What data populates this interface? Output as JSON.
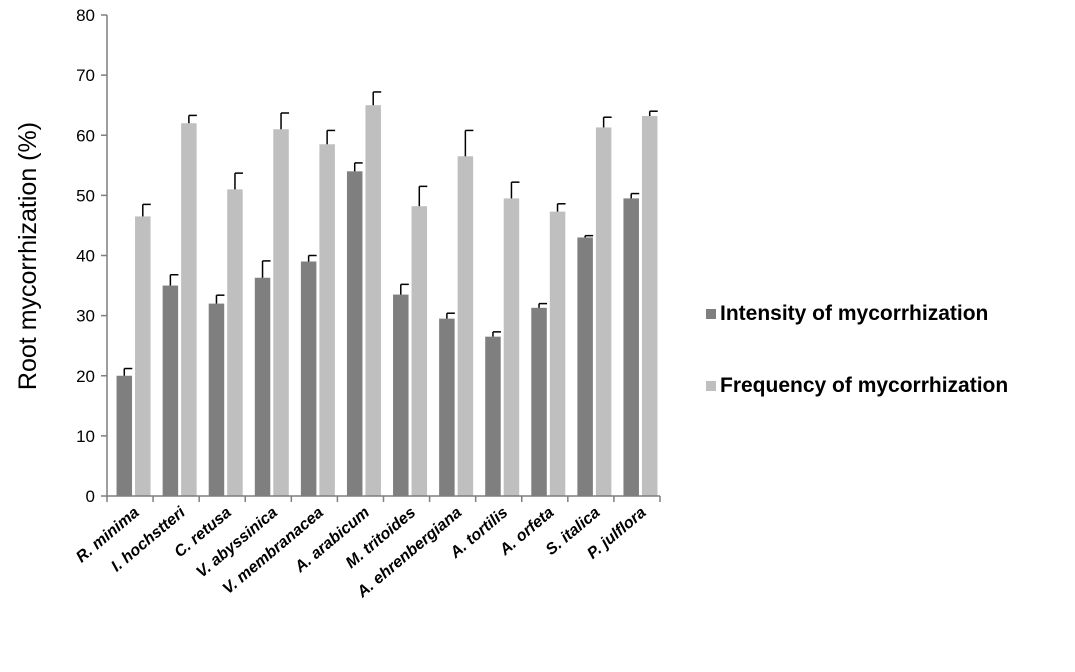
{
  "chart_data": {
    "type": "bar",
    "title": "",
    "xlabel": "",
    "ylabel": "Root mycorrhization (%)",
    "ylim": [
      0,
      80
    ],
    "yticks": [
      0,
      10,
      20,
      30,
      40,
      50,
      60,
      70,
      80
    ],
    "grid": false,
    "legend_position": "right",
    "categories": [
      "R. minima",
      "I. hochstteri",
      "C. retusa",
      "V. abyssinica",
      "V. membranacea",
      "A. arabicum",
      "M. tritoides",
      "A. ehrenbergiana",
      "A. tortilis",
      "A. orfeta",
      "S. italica",
      "P. julflora"
    ],
    "series": [
      {
        "name": "Intensity of mycorrhization",
        "color": "#7f7f7f",
        "values": [
          20,
          35,
          32,
          36.3,
          39,
          54,
          33.5,
          29.5,
          26.5,
          31.3,
          43,
          49.5
        ],
        "errors": [
          1.2,
          1.8,
          1.4,
          2.8,
          1.0,
          1.4,
          1.7,
          0.9,
          0.8,
          0.7,
          0.3,
          0.8
        ]
      },
      {
        "name": "Frequency of mycorrhization",
        "color": "#bfbfbf",
        "values": [
          46.5,
          62,
          51,
          61,
          58.5,
          65,
          48.2,
          56.5,
          49.5,
          47.3,
          61.3,
          63.2
        ],
        "errors": [
          2.0,
          1.3,
          2.7,
          2.7,
          2.3,
          2.2,
          3.3,
          4.3,
          2.7,
          1.3,
          1.7,
          0.8
        ]
      }
    ]
  }
}
